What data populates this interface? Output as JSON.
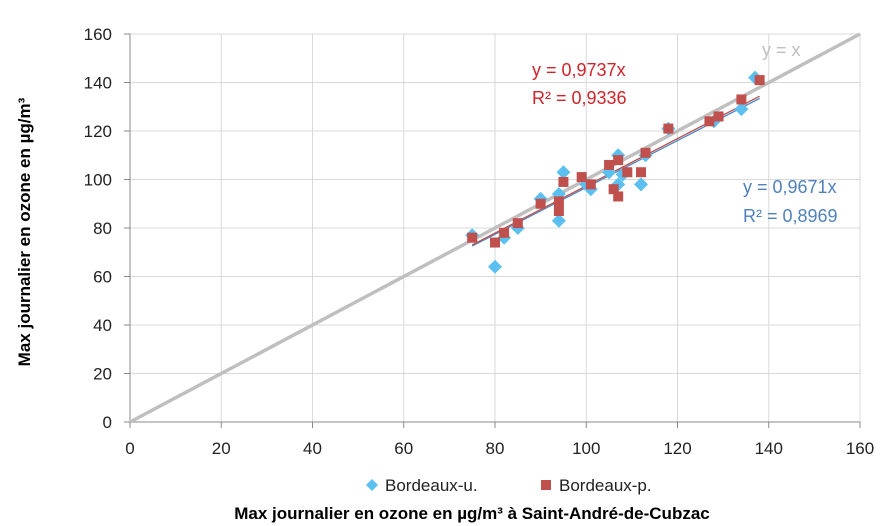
{
  "chart_data": {
    "type": "scatter",
    "xlabel": "Max journalier en ozone en µg/m³ à Saint-André-de-Cubzac",
    "ylabel": "Max journalier en ozone en µg/m³",
    "xlim": [
      0,
      160
    ],
    "ylim": [
      0,
      160
    ],
    "xticks": [
      "0",
      "20",
      "40",
      "60",
      "80",
      "100",
      "120",
      "140",
      "160"
    ],
    "yticks": [
      "0",
      "20",
      "40",
      "60",
      "80",
      "100",
      "120",
      "140",
      "160"
    ],
    "grid": true,
    "legend_position": "bottom",
    "identity_line": {
      "label": "y = x",
      "color": "#bfbfbf"
    },
    "series": [
      {
        "name": "Bordeaux-u.",
        "marker": "diamond",
        "color": "#5bc0f0",
        "trend_color": "#4a8bc8",
        "points": [
          [
            75,
            77
          ],
          [
            80,
            64
          ],
          [
            82,
            76
          ],
          [
            85,
            80
          ],
          [
            90,
            92
          ],
          [
            94,
            94
          ],
          [
            94,
            83
          ],
          [
            95,
            103
          ],
          [
            100,
            98
          ],
          [
            101,
            96
          ],
          [
            105,
            103
          ],
          [
            107,
            98
          ],
          [
            107,
            110
          ],
          [
            108,
            102
          ],
          [
            112,
            98
          ],
          [
            113,
            110
          ],
          [
            118,
            121
          ],
          [
            128,
            124
          ],
          [
            134,
            129
          ],
          [
            137,
            142
          ]
        ],
        "trend": {
          "slope": 0.9671,
          "x_range": [
            75,
            138
          ]
        },
        "equation": "y = 0,9671x",
        "r2": "R² = 0,8969",
        "label_color": "#4f81bd"
      },
      {
        "name": "Bordeaux-p.",
        "marker": "square",
        "color": "#c0504d",
        "trend_color": "#c0504d",
        "points": [
          [
            75,
            76
          ],
          [
            80,
            74
          ],
          [
            82,
            78
          ],
          [
            85,
            82
          ],
          [
            90,
            90
          ],
          [
            94,
            91
          ],
          [
            94,
            87
          ],
          [
            95,
            99
          ],
          [
            99,
            101
          ],
          [
            101,
            98
          ],
          [
            105,
            106
          ],
          [
            106,
            96
          ],
          [
            107,
            93
          ],
          [
            107,
            108
          ],
          [
            109,
            103
          ],
          [
            112,
            103
          ],
          [
            113,
            111
          ],
          [
            118,
            121
          ],
          [
            127,
            124
          ],
          [
            129,
            126
          ],
          [
            134,
            133
          ],
          [
            138,
            141
          ]
        ],
        "trend": {
          "slope": 0.9737,
          "x_range": [
            75,
            138
          ]
        },
        "equation": "y = 0,9737x",
        "r2": "R² = 0,9336",
        "label_color": "#d0232a"
      }
    ]
  }
}
